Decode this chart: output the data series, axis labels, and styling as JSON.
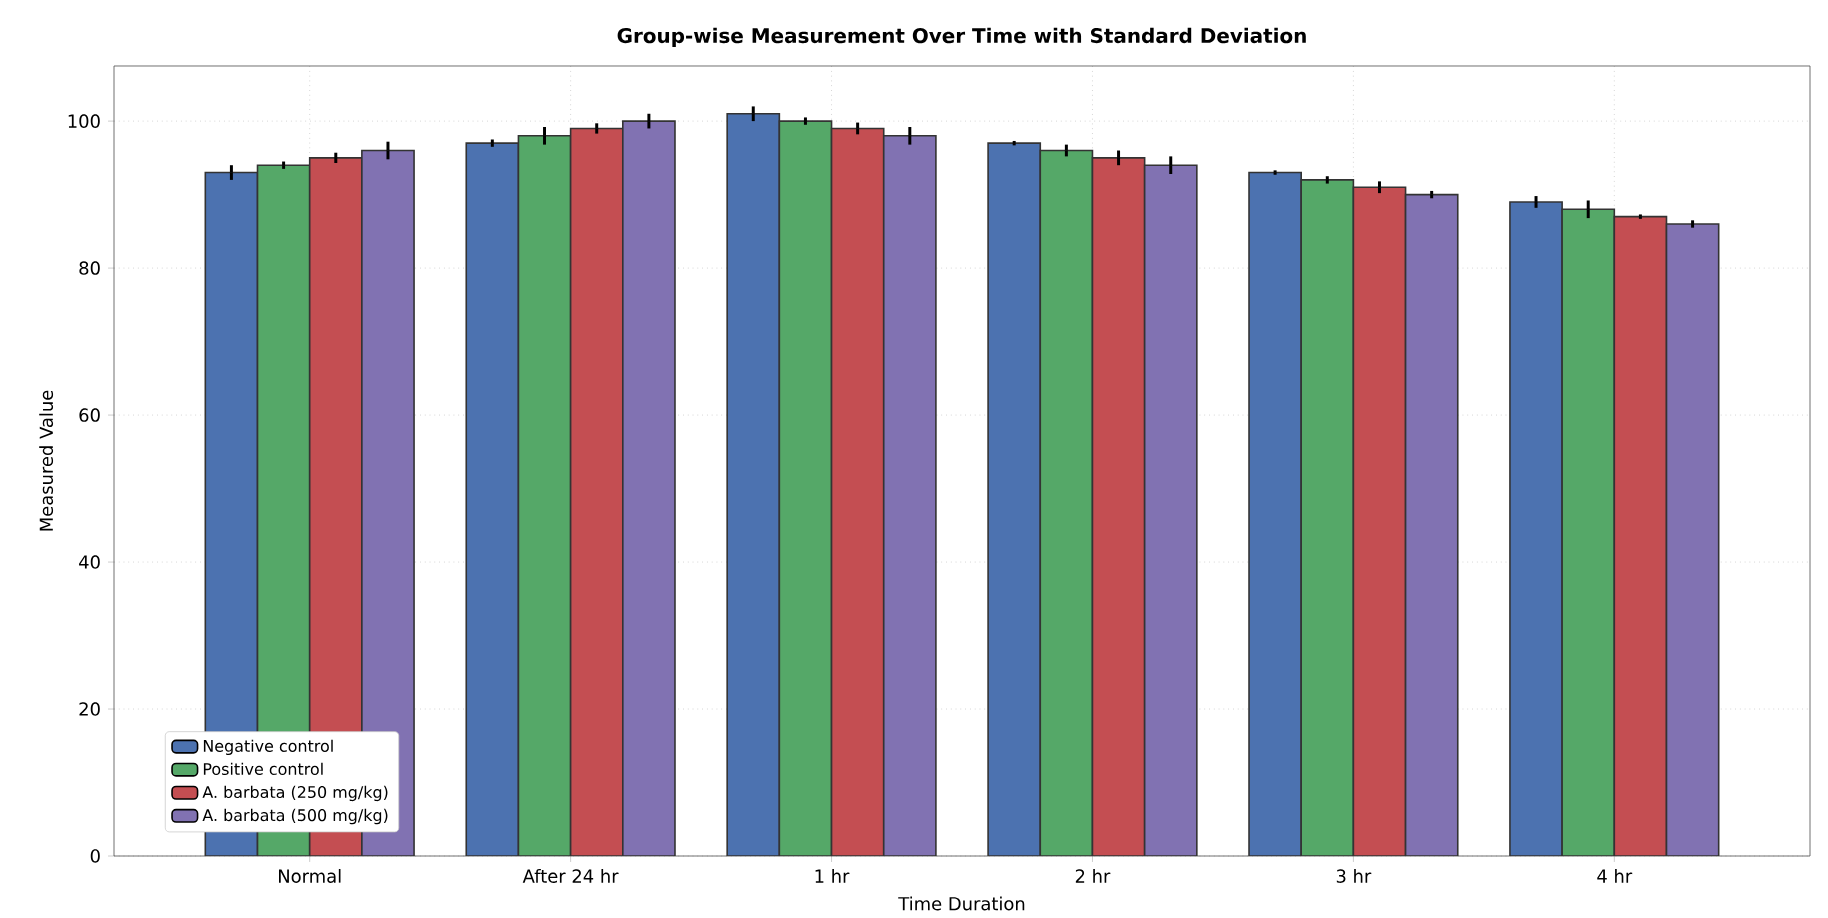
{
  "chart_data": {
    "type": "bar",
    "title": "Group-wise Measurement Over Time with Standard Deviation",
    "xlabel": "Time Duration",
    "ylabel": "Measured Value",
    "categories": [
      "Normal",
      "After 24 hr",
      "1 hr",
      "2 hr",
      "3 hr",
      "4 hr"
    ],
    "series": [
      {
        "name": "Negative control",
        "color": "#4c72b0",
        "values": [
          93,
          97,
          101,
          97,
          93,
          89
        ],
        "errors": [
          1.0,
          0.5,
          1.0,
          0.3,
          0.3,
          0.8
        ]
      },
      {
        "name": "Positive control",
        "color": "#55a868",
        "values": [
          94,
          98,
          100,
          96,
          92,
          88
        ],
        "errors": [
          0.5,
          1.2,
          0.5,
          0.8,
          0.5,
          1.2
        ]
      },
      {
        "name": "A. barbata (250 mg/kg)",
        "color": "#c44e52",
        "values": [
          95,
          99,
          99,
          95,
          91,
          87
        ],
        "errors": [
          0.7,
          0.7,
          0.8,
          1.0,
          0.8,
          0.3
        ]
      },
      {
        "name": "A. barbata (500 mg/kg)",
        "color": "#8172b2",
        "values": [
          96,
          100,
          98,
          94,
          90,
          86
        ],
        "errors": [
          1.2,
          1.0,
          1.2,
          1.2,
          0.5,
          0.5
        ]
      }
    ],
    "ylim": [
      0,
      107.5
    ],
    "yticks": [
      0,
      20,
      40,
      60,
      80,
      100
    ],
    "grid": true,
    "legend": "bottom left"
  }
}
